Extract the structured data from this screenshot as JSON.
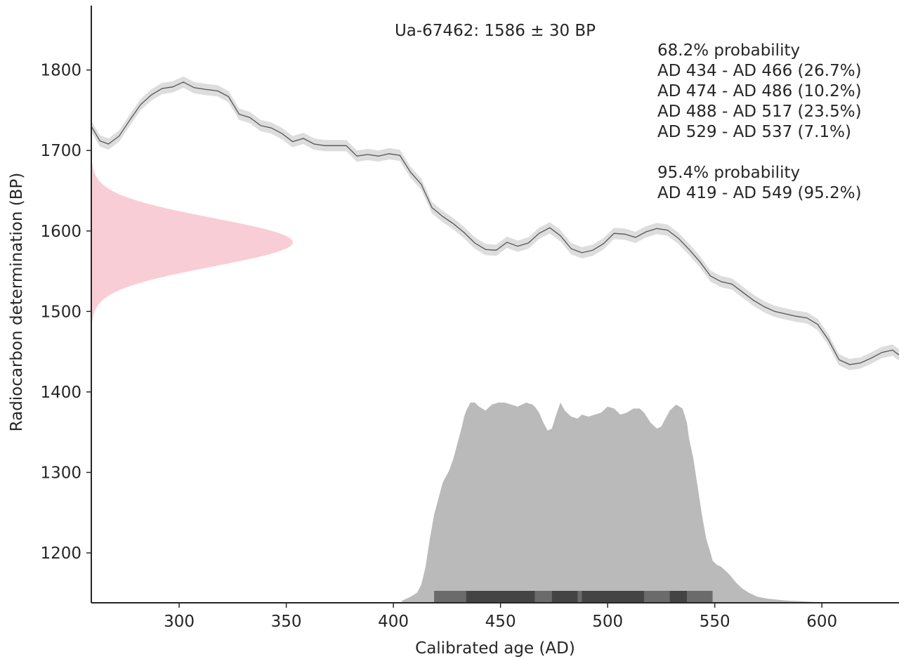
{
  "chart_data": {
    "type": "area",
    "title": "Ua-67462: 1586 ± 30 BP",
    "xlabel": "Calibrated age (AD)",
    "ylabel": "Radiocarbon determination (BP)",
    "xlim": [
      259,
      636
    ],
    "ylim": [
      1138,
      1880
    ],
    "x_ticks": [
      300,
      350,
      400,
      450,
      500,
      550,
      600
    ],
    "y_ticks": [
      1200,
      1300,
      1400,
      1500,
      1600,
      1700,
      1800
    ],
    "grid": false,
    "annotations": {
      "p68_title": "68.2% probability",
      "p68_ranges": [
        "AD 434 - AD 466 (26.7%)",
        "AD 474 - AD 486 (10.2%)",
        "AD 488 - AD 517 (23.5%)",
        "AD 529 - AD 537 (7.1%)"
      ],
      "p95_title": "95.4% probability",
      "p95_ranges": [
        "AD 419 - AD 549 (95.2%)"
      ]
    },
    "calibration_curve": {
      "sigma": 7,
      "x": [
        259,
        263,
        267,
        272,
        277,
        282,
        287,
        292,
        297,
        302,
        307,
        312,
        318,
        323,
        328,
        333,
        338,
        343,
        348,
        353,
        358,
        363,
        368,
        373,
        378,
        383,
        388,
        393,
        398,
        403,
        408,
        413,
        418,
        423,
        428,
        433,
        438,
        443,
        448,
        453,
        458,
        463,
        468,
        473,
        478,
        483,
        488,
        493,
        498,
        503,
        508,
        513,
        518,
        523,
        528,
        533,
        538,
        543,
        548,
        553,
        558,
        563,
        568,
        573,
        578,
        583,
        588,
        593,
        598,
        603,
        608,
        613,
        618,
        623,
        628,
        633,
        636
      ],
      "y": [
        1730,
        1712,
        1708,
        1718,
        1738,
        1757,
        1769,
        1777,
        1779,
        1785,
        1778,
        1776,
        1774,
        1767,
        1745,
        1741,
        1731,
        1728,
        1721,
        1711,
        1715,
        1708,
        1706,
        1706,
        1706,
        1693,
        1695,
        1693,
        1696,
        1694,
        1673,
        1658,
        1629,
        1618,
        1609,
        1598,
        1585,
        1577,
        1576,
        1586,
        1581,
        1585,
        1597,
        1604,
        1594,
        1578,
        1573,
        1576,
        1584,
        1597,
        1596,
        1592,
        1599,
        1603,
        1601,
        1591,
        1577,
        1562,
        1544,
        1537,
        1534,
        1524,
        1514,
        1506,
        1500,
        1497,
        1494,
        1492,
        1484,
        1465,
        1440,
        1434,
        1436,
        1442,
        1449,
        1452,
        1446
      ]
    },
    "radiocarbon_date": {
      "mean": 1586,
      "sd": 30
    },
    "calibrated_distribution": {
      "x": [
        404,
        406,
        408,
        411,
        413,
        415,
        417,
        419,
        421,
        423,
        426,
        428,
        430,
        432,
        433,
        434,
        436,
        438,
        440,
        443,
        446,
        449,
        452,
        455,
        458,
        462,
        465,
        466,
        468,
        470,
        472,
        474,
        476,
        478,
        480,
        483,
        486,
        488,
        491,
        494,
        497,
        500,
        503,
        506,
        509,
        512,
        515,
        517,
        520,
        523,
        525,
        527,
        529,
        532,
        535,
        537,
        538,
        540,
        542,
        544,
        546,
        548,
        549,
        551,
        553,
        555,
        557,
        560,
        563,
        566,
        570,
        575,
        580,
        585,
        590,
        595,
        600
      ],
      "y": [
        0.01,
        0.02,
        0.03,
        0.05,
        0.09,
        0.18,
        0.32,
        0.44,
        0.52,
        0.6,
        0.66,
        0.72,
        0.8,
        0.88,
        0.93,
        0.96,
        1.0,
        1.0,
        0.98,
        0.96,
        0.99,
        1.0,
        1.0,
        0.99,
        0.98,
        1.0,
        0.99,
        0.98,
        0.95,
        0.9,
        0.86,
        0.87,
        0.94,
        1.0,
        0.96,
        0.93,
        0.92,
        0.94,
        0.93,
        0.94,
        0.95,
        0.98,
        0.97,
        0.94,
        0.95,
        0.97,
        0.97,
        0.95,
        0.9,
        0.87,
        0.88,
        0.92,
        0.96,
        0.99,
        0.97,
        0.9,
        0.82,
        0.72,
        0.58,
        0.44,
        0.32,
        0.25,
        0.21,
        0.19,
        0.18,
        0.16,
        0.14,
        0.1,
        0.07,
        0.05,
        0.03,
        0.02,
        0.015,
        0.01,
        0.008,
        0.005,
        0.003
      ]
    },
    "hpd_68": [
      [
        434,
        466
      ],
      [
        474,
        486
      ],
      [
        488,
        517
      ],
      [
        529,
        537
      ]
    ],
    "hpd_95": [
      [
        419,
        549
      ]
    ],
    "colors": {
      "curve_line": "#555555",
      "curve_band": "#dddddd",
      "date_fill": "#f9cdd6",
      "distribution_fill": "#bababa",
      "hpd_68_bar": "#444444",
      "hpd_95_bar": "#6b6b6b",
      "axis": "#262626",
      "text": "#262626"
    }
  }
}
